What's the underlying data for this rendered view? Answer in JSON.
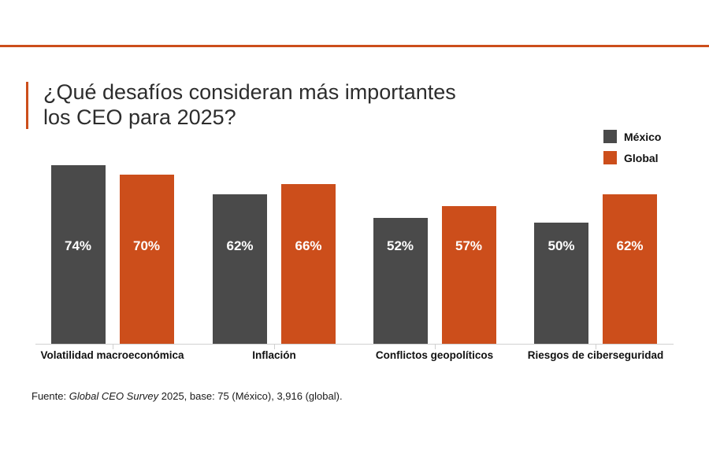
{
  "header": {
    "title_line1": "¿Qué desafíos consideran más importantes",
    "title_line2": "los CEO para 2025?"
  },
  "legend": {
    "position": "top-right",
    "items": [
      {
        "label": "México",
        "color": "#4A4A4A"
      },
      {
        "label": "Global",
        "color": "#CC4E1B"
      }
    ]
  },
  "chart_data": {
    "type": "bar",
    "title": "¿Qué desafíos consideran más importantes los CEO para 2025?",
    "categories": [
      "Volatilidad macroeconómica",
      "Inflación",
      "Conflictos geopolíticos",
      "Riesgos de ciberseguridad"
    ],
    "series": [
      {
        "name": "México",
        "color": "#4A4A4A",
        "values": [
          74,
          62,
          52,
          50
        ]
      },
      {
        "name": "Global",
        "color": "#CC4E1B",
        "values": [
          70,
          66,
          57,
          62
        ]
      }
    ],
    "value_suffix": "%",
    "xlabel": "",
    "ylabel": "",
    "ylim": [
      0,
      100
    ],
    "grid": false,
    "y_axis_visible": false,
    "legend_position": "top-right"
  },
  "footer": {
    "source_prefix": "Fuente: ",
    "source_italic": "Global CEO Survey",
    "source_suffix": " 2025, base: 75 (México), 3,916 (global)."
  },
  "colors": {
    "accent_orange": "#CC4E1B",
    "bar_dark": "#4A4A4A",
    "axis_gray": "#D0D0D0",
    "title_text": "#2D2D2D"
  }
}
